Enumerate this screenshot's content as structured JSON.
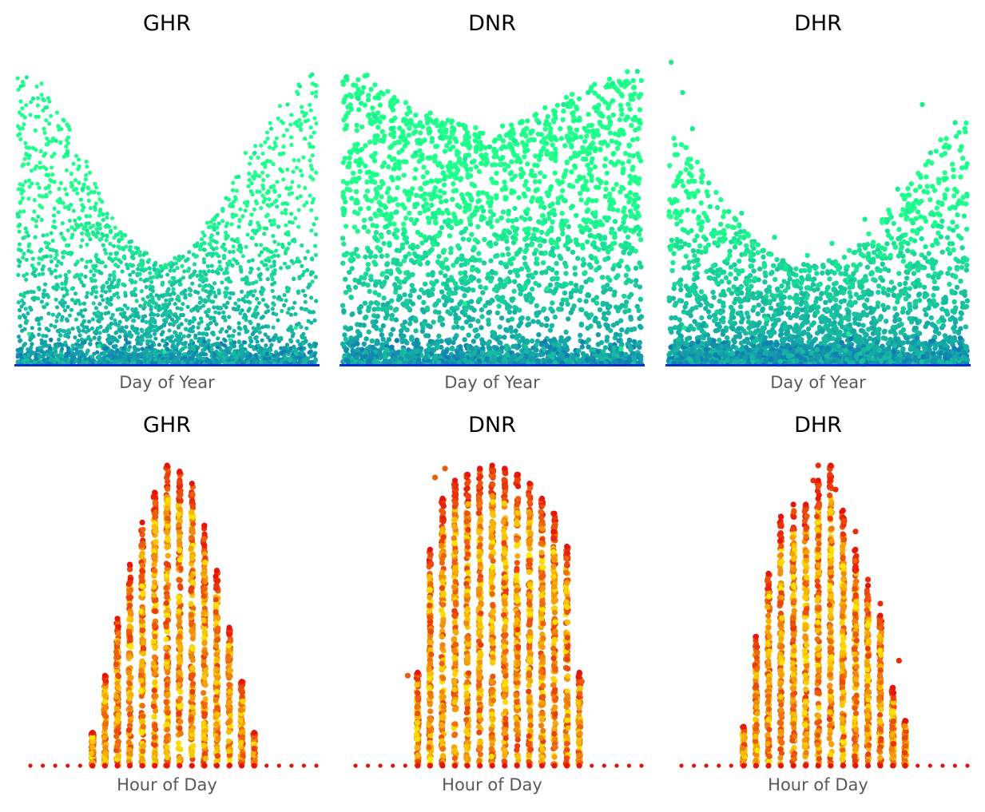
{
  "chart_data": [
    {
      "type": "scatter",
      "title": "GHR",
      "xlabel": "Day of Year",
      "ylabel": "",
      "x_unit": "day",
      "xlim": [
        1,
        365
      ],
      "ylim": [
        0,
        1
      ],
      "grid": false,
      "legend": "none",
      "colormap": "winter-green (blue at low values, spring green at high values)",
      "colors": {
        "low": "#0a33c8",
        "high": "#1eff8c"
      },
      "pattern": "upper envelope high in winter, minimum near mid-year; dense band near zero",
      "envelope": {
        "x": [
          1,
          30,
          60,
          90,
          120,
          150,
          180,
          210,
          240,
          270,
          300,
          330,
          365
        ],
        "y": [
          0.96,
          0.94,
          0.82,
          0.64,
          0.47,
          0.38,
          0.34,
          0.38,
          0.5,
          0.66,
          0.8,
          0.9,
          0.97
        ]
      },
      "series": [
        {
          "values": [
            [
              5,
              0.92
            ],
            [
              12,
              0.95
            ],
            [
              20,
              0.88
            ],
            [
              35,
              0.85
            ],
            [
              48,
              0.74
            ],
            [
              62,
              0.7
            ],
            [
              80,
              0.58
            ],
            [
              95,
              0.52
            ],
            [
              110,
              0.46
            ],
            [
              130,
              0.38
            ],
            [
              150,
              0.36
            ],
            [
              170,
              0.3
            ],
            [
              182,
              0.32
            ],
            [
              200,
              0.35
            ],
            [
              220,
              0.4
            ],
            [
              240,
              0.45
            ],
            [
              255,
              0.55
            ],
            [
              270,
              0.62
            ],
            [
              290,
              0.7
            ],
            [
              310,
              0.78
            ],
            [
              330,
              0.86
            ],
            [
              345,
              0.92
            ],
            [
              360,
              0.96
            ],
            [
              15,
              0.1
            ],
            [
              100,
              0.06
            ],
            [
              180,
              0.04
            ],
            [
              260,
              0.08
            ],
            [
              340,
              0.12
            ]
          ]
        }
      ]
    },
    {
      "type": "scatter",
      "title": "DNR",
      "xlabel": "Day of Year",
      "ylabel": "",
      "x_unit": "day",
      "xlim": [
        1,
        365
      ],
      "ylim": [
        0,
        1
      ],
      "grid": false,
      "legend": "none",
      "colormap": "winter-green (blue at low values, spring green at high values)",
      "colors": {
        "low": "#0a33c8",
        "high": "#1eff8c"
      },
      "pattern": "broad scatter across full range all year; slight dip mid-year; band near zero",
      "envelope": {
        "x": [
          1,
          30,
          60,
          90,
          120,
          150,
          180,
          210,
          240,
          270,
          300,
          330,
          365
        ],
        "y": [
          0.97,
          0.96,
          0.9,
          0.85,
          0.82,
          0.79,
          0.78,
          0.8,
          0.84,
          0.88,
          0.92,
          0.95,
          0.99
        ]
      },
      "series": [
        {
          "values": [
            [
              5,
              0.95
            ],
            [
              20,
              0.88
            ],
            [
              40,
              0.82
            ],
            [
              60,
              0.78
            ],
            [
              90,
              0.7
            ],
            [
              120,
              0.75
            ],
            [
              150,
              0.68
            ],
            [
              180,
              0.72
            ],
            [
              210,
              0.74
            ],
            [
              240,
              0.8
            ],
            [
              270,
              0.86
            ],
            [
              300,
              0.9
            ],
            [
              330,
              0.93
            ],
            [
              360,
              0.97
            ],
            [
              50,
              0.3
            ],
            [
              150,
              0.2
            ],
            [
              250,
              0.25
            ],
            [
              340,
              0.05
            ]
          ]
        }
      ]
    },
    {
      "type": "scatter",
      "title": "DHR",
      "xlabel": "Day of Year",
      "ylabel": "",
      "x_unit": "day",
      "xlim": [
        1,
        365
      ],
      "ylim": [
        0,
        1
      ],
      "grid": false,
      "legend": "none",
      "colormap": "winter-green (blue at low values, spring green at high values)",
      "colors": {
        "low": "#0a33c8",
        "high": "#1eff8c"
      },
      "pattern": "dense cloud at low-mid values; upper envelope lowest mid-year; sparse outliers up to top",
      "envelope": {
        "x": [
          1,
          30,
          60,
          90,
          120,
          150,
          180,
          210,
          240,
          270,
          300,
          330,
          365
        ],
        "y": [
          0.78,
          0.7,
          0.58,
          0.45,
          0.38,
          0.34,
          0.33,
          0.36,
          0.42,
          0.52,
          0.62,
          0.74,
          0.82
        ]
      },
      "series": [
        {
          "values": [
            [
              4,
              1.0
            ],
            [
              18,
              0.9
            ],
            [
              30,
              0.78
            ],
            [
              50,
              0.6
            ],
            [
              90,
              0.5
            ],
            [
              130,
              0.42
            ],
            [
              170,
              0.36
            ],
            [
              200,
              0.4
            ],
            [
              240,
              0.48
            ],
            [
              280,
              0.58
            ],
            [
              310,
              0.86
            ],
            [
              320,
              0.7
            ],
            [
              350,
              0.8
            ],
            [
              20,
              0.12
            ],
            [
              120,
              0.15
            ],
            [
              220,
              0.1
            ],
            [
              330,
              0.14
            ]
          ]
        }
      ]
    },
    {
      "type": "scatter",
      "title": "GHR",
      "xlabel": "Hour of Day",
      "ylabel": "",
      "x_unit": "hour",
      "xlim": [
        0,
        23
      ],
      "ylim": [
        0,
        1
      ],
      "grid": false,
      "legend": "none",
      "colormap": "autumn (red at low values, yellow at high values)",
      "colors": {
        "low": "#e6140a",
        "mid": "#f08a10",
        "high": "#ffea00"
      },
      "pattern": "one vertical column of points per hour; bell-shaped maximum peaking around hour 12",
      "hourly_max": {
        "x": [
          0,
          1,
          2,
          3,
          4,
          5,
          6,
          7,
          8,
          9,
          10,
          11,
          12,
          13,
          14,
          15,
          16,
          17,
          18,
          19,
          20,
          21,
          22,
          23
        ],
        "y": [
          0,
          0,
          0,
          0,
          0,
          0.11,
          0.3,
          0.49,
          0.67,
          0.81,
          0.91,
          1.0,
          0.98,
          0.94,
          0.8,
          0.65,
          0.46,
          0.28,
          0.11,
          0,
          0,
          0,
          0,
          0
        ]
      }
    },
    {
      "type": "scatter",
      "title": "DNR",
      "xlabel": "Hour of Day",
      "ylabel": "",
      "x_unit": "hour",
      "xlim": [
        0,
        23
      ],
      "ylim": [
        0,
        1
      ],
      "grid": false,
      "legend": "none",
      "colormap": "autumn (red at low values, yellow at high values)",
      "colors": {
        "low": "#e6140a",
        "mid": "#f08a10",
        "high": "#ffea00"
      },
      "pattern": "one vertical column per hour; wide flat-topped shape between hours 5 and 18",
      "hourly_max": {
        "x": [
          0,
          1,
          2,
          3,
          4,
          5,
          6,
          7,
          8,
          9,
          10,
          11,
          12,
          13,
          14,
          15,
          16,
          17,
          18,
          19,
          20,
          21,
          22,
          23
        ],
        "y": [
          0,
          0,
          0,
          0,
          0,
          0.31,
          0.72,
          0.89,
          0.95,
          0.97,
          0.99,
          1.0,
          0.99,
          0.97,
          0.94,
          0.89,
          0.84,
          0.73,
          0.31,
          0,
          0,
          0,
          0,
          0
        ]
      }
    },
    {
      "type": "scatter",
      "title": "DHR",
      "xlabel": "Hour of Day",
      "ylabel": "",
      "x_unit": "hour",
      "xlim": [
        0,
        23
      ],
      "ylim": [
        0,
        1
      ],
      "grid": false,
      "legend": "none",
      "colormap": "autumn (red at low values, yellow at high values)",
      "colors": {
        "low": "#e6140a",
        "mid": "#f08a10",
        "high": "#ffea00"
      },
      "pattern": "one vertical column per hour; narrower shape peaking near midday with scattered outliers",
      "hourly_max": {
        "x": [
          0,
          1,
          2,
          3,
          4,
          5,
          6,
          7,
          8,
          9,
          10,
          11,
          12,
          13,
          14,
          15,
          16,
          17,
          18,
          19,
          20,
          21,
          22,
          23
        ],
        "y": [
          0,
          0,
          0,
          0,
          0,
          0.13,
          0.43,
          0.64,
          0.83,
          0.87,
          0.87,
          0.95,
          1.0,
          0.85,
          0.72,
          0.6,
          0.5,
          0.26,
          0.15,
          0,
          0,
          0,
          0,
          0
        ]
      }
    }
  ]
}
